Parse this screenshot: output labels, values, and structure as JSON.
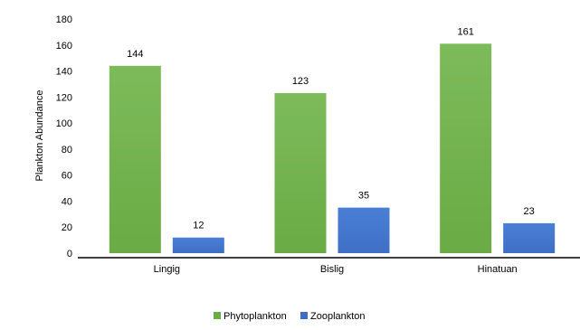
{
  "chart_data": {
    "type": "bar",
    "title": "",
    "xlabel": "",
    "ylabel": "Plankton Abundance",
    "categories": [
      "Lingig",
      "Bislig",
      "Hinatuan"
    ],
    "series": [
      {
        "name": "Phytoplankton",
        "values": [
          144,
          123,
          161
        ],
        "color": "#6aab45"
      },
      {
        "name": "Zooplankton",
        "values": [
          12,
          35,
          23
        ],
        "color": "#3f6fc5"
      }
    ],
    "ylim": [
      0,
      180
    ],
    "yticks": [
      0,
      20,
      40,
      60,
      80,
      100,
      120,
      140,
      160,
      180
    ],
    "grid": false,
    "legend": "bottom-center",
    "data_labels": true
  }
}
